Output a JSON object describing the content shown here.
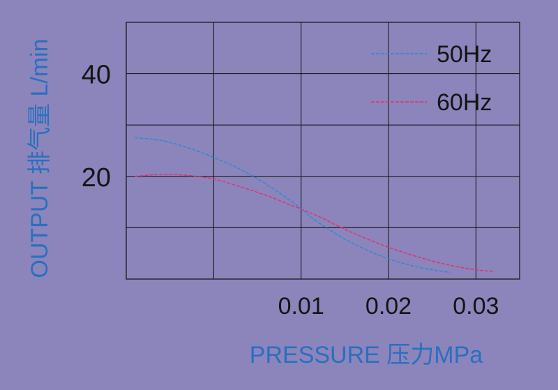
{
  "colors": {
    "background": "#8b85bb",
    "grid": "#1a1a1a",
    "tick_text": "#141414",
    "axis_title": "#2a6fc0",
    "series_50hz": "#2f86d6",
    "series_60hz": "#e0306a"
  },
  "chart_data": {
    "type": "line",
    "title": "",
    "xlabel": "PRESSURE 压力MPa",
    "ylabel": "OUTPUT 排气量 L/min",
    "xlim": [
      -0.01,
      0.035
    ],
    "ylim": [
      0,
      50
    ],
    "x_ticks": [
      0.01,
      0.02,
      0.03
    ],
    "x_tick_labels": [
      "0.01",
      "0.02",
      "0.03"
    ],
    "x_gridlines": [
      0,
      0.01,
      0.02,
      0.03
    ],
    "y_ticks": [
      20,
      40
    ],
    "y_tick_labels": [
      "20",
      "40"
    ],
    "y_gridlines": [
      10,
      20,
      30,
      40
    ],
    "grid": true,
    "legend_position": "top-right",
    "series": [
      {
        "name": "50Hz",
        "line_style": "dashed",
        "x": [
          -0.009,
          -0.006,
          -0.003,
          0.0,
          0.003,
          0.006,
          0.009,
          0.012,
          0.015,
          0.018,
          0.021,
          0.024,
          0.027
        ],
        "y": [
          27.5,
          27.0,
          25.6,
          23.7,
          21.4,
          18.5,
          15.0,
          11.0,
          7.8,
          5.3,
          3.4,
          2.1,
          1.3
        ]
      },
      {
        "name": "60Hz",
        "line_style": "dashed",
        "x": [
          -0.009,
          -0.006,
          -0.003,
          0.0,
          0.003,
          0.006,
          0.009,
          0.012,
          0.015,
          0.018,
          0.021,
          0.024,
          0.027,
          0.03,
          0.032
        ],
        "y": [
          20.0,
          20.4,
          20.2,
          19.5,
          18.0,
          16.3,
          14.3,
          12.2,
          9.7,
          7.5,
          5.6,
          4.0,
          2.7,
          1.8,
          1.5
        ]
      }
    ]
  }
}
